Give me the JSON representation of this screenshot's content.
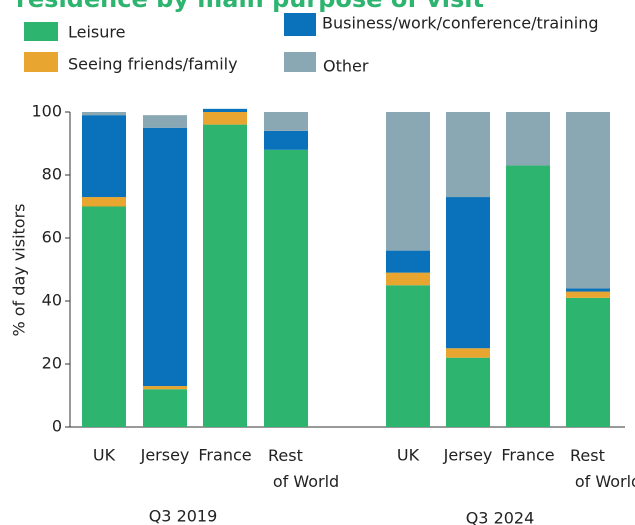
{
  "chart_data": {
    "type": "stacked_bar",
    "title": "residence by main purpose of visit",
    "ylabel": "% of day visitors",
    "categories": [
      "UK",
      "Jersey",
      "France",
      "Rest of World",
      "UK",
      "Jersey",
      "France",
      "Rest of World"
    ],
    "groups": [
      "Q3 2019",
      "Q3 2024"
    ],
    "series": [
      {
        "name": "Leisure",
        "color": "#2db46f",
        "values": [
          70,
          12,
          96,
          88,
          45,
          22,
          83,
          41
        ]
      },
      {
        "name": "Seeing friends/family",
        "color": "#e8a530",
        "values": [
          3,
          1,
          4,
          0,
          4,
          3,
          0,
          2
        ]
      },
      {
        "name": "Business/work/conference/training",
        "color": "#0a72ba",
        "values": [
          26,
          82,
          1,
          6,
          7,
          48,
          0,
          1
        ]
      },
      {
        "name": "Other",
        "color": "#8aa8b4",
        "values": [
          1,
          4,
          0,
          6,
          44,
          27,
          17,
          56
        ]
      }
    ],
    "ylim": [
      0,
      100
    ],
    "yticks": [
      0,
      20,
      40,
      60,
      80,
      100
    ]
  }
}
